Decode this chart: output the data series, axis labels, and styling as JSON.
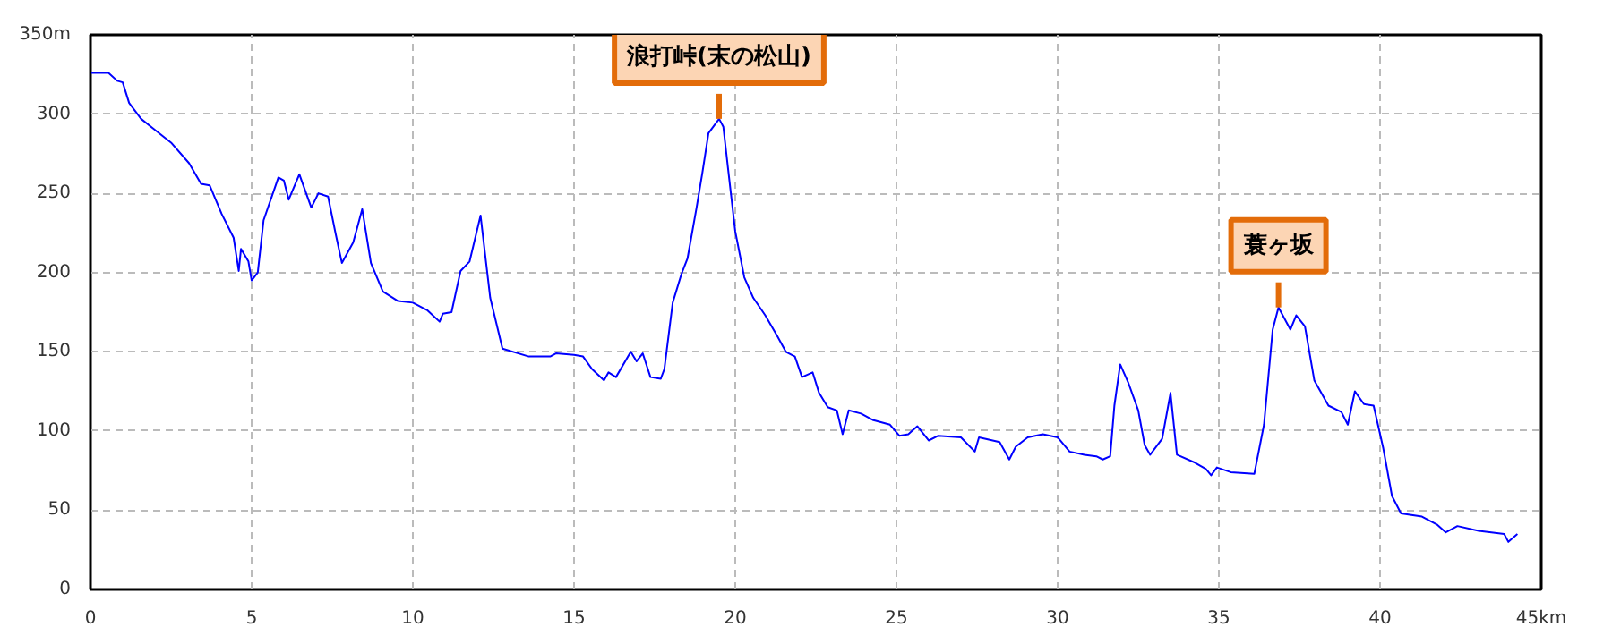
{
  "chart_data": {
    "type": "line",
    "x": [
      0,
      0.56,
      0.83,
      1.0,
      1.2,
      1.57,
      1.94,
      2.5,
      3.06,
      3.43,
      3.7,
      4.07,
      4.44,
      4.6,
      4.67,
      4.9,
      5.0,
      5.19,
      5.37,
      5.83,
      6.0,
      6.15,
      6.48,
      6.85,
      7.07,
      7.37,
      7.6,
      7.8,
      8.15,
      8.43,
      8.7,
      9.07,
      9.54,
      10.0,
      10.46,
      10.83,
      10.93,
      11.2,
      11.48,
      11.76,
      12.1,
      12.4,
      12.78,
      13.6,
      14.26,
      14.44,
      15.0,
      15.28,
      15.56,
      15.93,
      16.07,
      16.3,
      16.76,
      16.94,
      17.13,
      17.37,
      17.69,
      17.8,
      18.06,
      18.33,
      18.52,
      18.8,
      18.98,
      19.17,
      19.5,
      19.63,
      19.78,
      20.0,
      20.28,
      20.56,
      20.93,
      21.3,
      21.57,
      21.85,
      22.07,
      22.4,
      22.6,
      22.87,
      23.15,
      23.33,
      23.52,
      23.9,
      24.26,
      24.8,
      25.09,
      25.37,
      25.65,
      26.0,
      26.3,
      27.0,
      27.43,
      27.56,
      28.2,
      28.5,
      28.7,
      29.07,
      29.54,
      30.0,
      30.37,
      30.83,
      31.2,
      31.4,
      31.63,
      31.76,
      31.94,
      32.2,
      32.5,
      32.7,
      32.87,
      33.24,
      33.5,
      33.7,
      34.26,
      34.6,
      34.76,
      34.94,
      35.37,
      36.1,
      36.4,
      36.67,
      36.85,
      37.22,
      37.4,
      37.67,
      37.96,
      38.4,
      38.8,
      39.0,
      39.22,
      39.5,
      39.8,
      40.1,
      40.37,
      40.65,
      41.3,
      41.76,
      42.04,
      42.4,
      43.06,
      43.85,
      43.98,
      44.26
    ],
    "series": [
      {
        "color": "#0000ff",
        "values": [
          326,
          326,
          321,
          320,
          307,
          297,
          291,
          282,
          269,
          256,
          255,
          237,
          222,
          201,
          215,
          207,
          195,
          200,
          233,
          260,
          258,
          246,
          262,
          241,
          250,
          248,
          225,
          206,
          219,
          240,
          206,
          188,
          182,
          181,
          176,
          169,
          174,
          175,
          201,
          207,
          236,
          184,
          152,
          147,
          147,
          149,
          148,
          147,
          139,
          132,
          137,
          134,
          150,
          144,
          149,
          134,
          133,
          139,
          181,
          199,
          209,
          241,
          263,
          288,
          297,
          292,
          265,
          226,
          197,
          184,
          173,
          160,
          150,
          147,
          134,
          137,
          124,
          115,
          113,
          98,
          113,
          111,
          107,
          104,
          97,
          98,
          103,
          94,
          97,
          96,
          87,
          96,
          93,
          82,
          90,
          96,
          98,
          96,
          87,
          85,
          84,
          82,
          84,
          116,
          142,
          130,
          113,
          91,
          85,
          95,
          124,
          85,
          80,
          76,
          72,
          77,
          74,
          73,
          104,
          164,
          178,
          164,
          173,
          166,
          132,
          116,
          112,
          104,
          125,
          117,
          116,
          89,
          59,
          48,
          46,
          41,
          36,
          40,
          37,
          35,
          30,
          35
        ]
      }
    ],
    "xlim": [
      0,
      45
    ],
    "ylim": [
      0,
      350
    ],
    "xticks": [
      0,
      5,
      10,
      15,
      20,
      25,
      30,
      35,
      40,
      {
        "value": 45,
        "label": "45km"
      }
    ],
    "yticks": [
      0,
      50,
      100,
      150,
      200,
      250,
      300,
      {
        "value": 350,
        "label": "350m"
      }
    ],
    "grid": true,
    "line_style": "solid",
    "annotations": [
      {
        "text": "浪打峠(末の松山)",
        "x": 19.5,
        "y": 297
      },
      {
        "text": "蓑ヶ坂",
        "x": 36.85,
        "y": 178
      }
    ]
  }
}
